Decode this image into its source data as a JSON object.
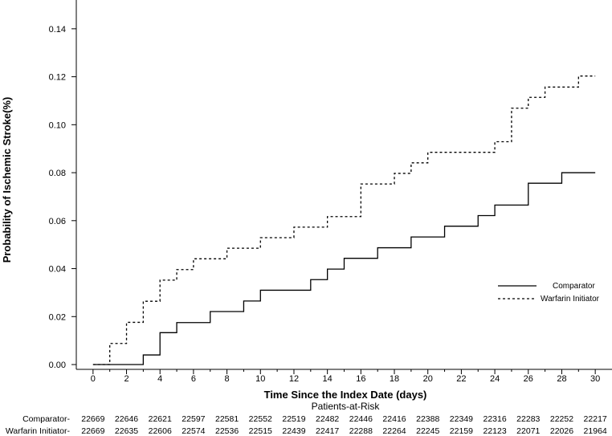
{
  "chart_data": {
    "type": "line",
    "subtype": "step",
    "xlabel": "Time Since the Index Date (days)",
    "ylabel": "Probability of Ischemic Stroke(%)",
    "xlim": [
      -1,
      31
    ],
    "ylim": [
      -0.002,
      0.152
    ],
    "x_ticks": [
      0,
      2,
      4,
      6,
      8,
      10,
      12,
      14,
      16,
      18,
      20,
      22,
      24,
      26,
      28,
      30
    ],
    "x_tick_labels": [
      "0",
      "2",
      "4",
      "6",
      "8",
      "10",
      "12",
      "14",
      "16",
      "18",
      "20",
      "22",
      "24",
      "26",
      "28",
      "30"
    ],
    "y_ticks": [
      0,
      0.02,
      0.04,
      0.06,
      0.08,
      0.1,
      0.12,
      0.14
    ],
    "y_tick_labels": [
      "0.00",
      "0.02",
      "0.04",
      "0.06",
      "0.08",
      "0.10",
      "0.12",
      "0.14"
    ],
    "grid": false,
    "legend_position": "right",
    "series": [
      {
        "name": "Comparator",
        "style": "solid",
        "color": "#000000",
        "points": [
          [
            0,
            0
          ],
          [
            3,
            0.004
          ],
          [
            4,
            0.0133
          ],
          [
            5,
            0.0175
          ],
          [
            7,
            0.0221
          ],
          [
            9,
            0.0265
          ],
          [
            10,
            0.031
          ],
          [
            13,
            0.0354
          ],
          [
            14,
            0.0398
          ],
          [
            15,
            0.0443
          ],
          [
            17,
            0.0487
          ],
          [
            19,
            0.0532
          ],
          [
            21,
            0.0577
          ],
          [
            23,
            0.0621
          ],
          [
            24,
            0.0665
          ],
          [
            26,
            0.0756
          ],
          [
            28,
            0.08
          ],
          [
            30,
            0.08
          ]
        ]
      },
      {
        "name": "Warfarin Initiator",
        "style": "dashed",
        "color": "#000000",
        "points": [
          [
            0,
            0
          ],
          [
            1,
            0.0088
          ],
          [
            2,
            0.0176
          ],
          [
            3,
            0.0264
          ],
          [
            4,
            0.0352
          ],
          [
            5,
            0.0396
          ],
          [
            6,
            0.0441
          ],
          [
            8,
            0.0485
          ],
          [
            10,
            0.0529
          ],
          [
            12,
            0.0573
          ],
          [
            14,
            0.0617
          ],
          [
            16,
            0.0753
          ],
          [
            18,
            0.0797
          ],
          [
            19,
            0.0841
          ],
          [
            20,
            0.0885
          ],
          [
            24,
            0.0929
          ],
          [
            25,
            0.1069
          ],
          [
            26,
            0.1114
          ],
          [
            27,
            0.1157
          ],
          [
            29,
            0.1203
          ],
          [
            30,
            0.1203
          ]
        ]
      }
    ],
    "risk_table": {
      "title": "Patients-at-Risk",
      "rows": [
        {
          "label": "Comparator-",
          "values": [
            "22669",
            "22646",
            "22621",
            "22597",
            "22581",
            "22552",
            "22519",
            "22482",
            "22446",
            "22416",
            "22388",
            "22349",
            "22316",
            "22283",
            "22252",
            "22217"
          ]
        },
        {
          "label": "Warfarin Initiator-",
          "values": [
            "22669",
            "22635",
            "22606",
            "22574",
            "22536",
            "22515",
            "22439",
            "22417",
            "22288",
            "22264",
            "22245",
            "22159",
            "22123",
            "22071",
            "22026",
            "21964"
          ]
        }
      ]
    }
  }
}
